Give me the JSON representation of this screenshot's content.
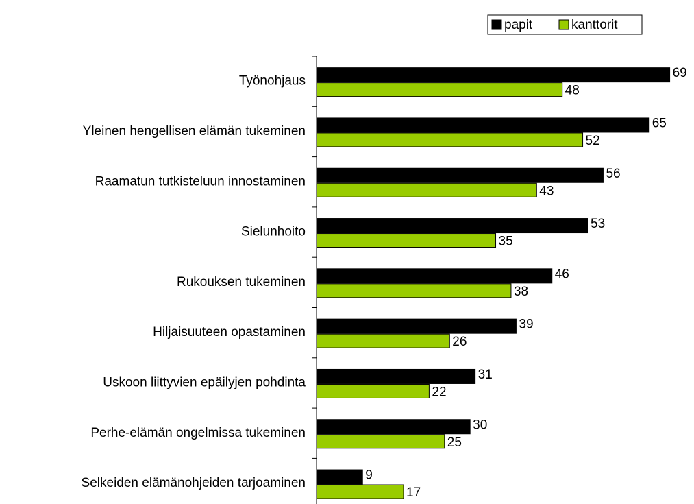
{
  "chart_data": {
    "type": "barh",
    "categories": [
      "Työnohjaus",
      "Yleinen hengellisen elämän tukeminen",
      "Raamatun tutkisteluun innostaminen",
      "Sielunhoito",
      "Rukouksen tukeminen",
      "Hiljaisuuteen opastaminen",
      "Uskoon liittyvien epäilyjen pohdinta",
      "Perhe-elämän ongelmissa tukeminen",
      "Selkeiden elämänohjeiden tarjoaminen"
    ],
    "series": [
      {
        "name": "papit",
        "color": "#000000",
        "values": [
          69,
          65,
          56,
          53,
          46,
          39,
          31,
          30,
          9
        ]
      },
      {
        "name": "kanttorit",
        "color": "#99cc00",
        "values": [
          48,
          52,
          43,
          35,
          38,
          26,
          22,
          25,
          17
        ]
      }
    ],
    "xlim": [
      0,
      72
    ],
    "legend": "top-right"
  }
}
